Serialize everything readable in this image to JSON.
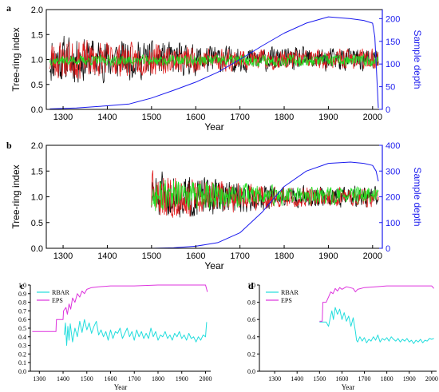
{
  "figure": {
    "colors": {
      "black": "#111111",
      "red": "#e02020",
      "green": "#22dd22",
      "blue": "#1a1aee",
      "cyan": "#22dddd",
      "magenta": "#dd33dd"
    }
  },
  "chart_data": [
    {
      "panel": "a",
      "type": "line",
      "xlabel": "Year",
      "ylabel_left": "Tree-ring index",
      "ylabel_right": "Sample depth",
      "xlim": [
        1262,
        2022
      ],
      "ylim_left": [
        0,
        2.0
      ],
      "ylim_right": [
        0,
        220
      ],
      "xticks": [
        1300,
        1400,
        1500,
        1600,
        1700,
        1800,
        1900,
        2000
      ],
      "yticks_left": [
        0.0,
        0.5,
        1.0,
        1.5,
        2.0
      ],
      "yticks_right": [
        0,
        50,
        100,
        150,
        200
      ],
      "grid": false,
      "series": [
        {
          "kind": "ring-index",
          "color": "black",
          "start": 1270,
          "end": 2013,
          "mean": 1.0,
          "amp_early": 0.42,
          "amp_late": 0.2,
          "seed": 11
        },
        {
          "kind": "ring-index",
          "color": "red",
          "start": 1270,
          "end": 2013,
          "mean": 1.0,
          "amp_early": 0.35,
          "amp_late": 0.17,
          "seed": 23
        },
        {
          "kind": "ring-index",
          "color": "green",
          "start": 1270,
          "end": 2013,
          "mean": 0.98,
          "amp_early": 0.08,
          "amp_late": 0.1,
          "seed": 37
        },
        {
          "kind": "sample-depth",
          "color": "blue",
          "axis": "right",
          "points": [
            [
              1270,
              1
            ],
            [
              1330,
              3
            ],
            [
              1400,
              8
            ],
            [
              1450,
              12
            ],
            [
              1500,
              25
            ],
            [
              1550,
              42
            ],
            [
              1600,
              60
            ],
            [
              1650,
              82
            ],
            [
              1700,
              110
            ],
            [
              1750,
              140
            ],
            [
              1800,
              168
            ],
            [
              1850,
              190
            ],
            [
              1900,
              204
            ],
            [
              1950,
              200
            ],
            [
              1980,
              196
            ],
            [
              2000,
              190
            ],
            [
              2005,
              160
            ],
            [
              2010,
              60
            ],
            [
              2013,
              3
            ]
          ]
        }
      ]
    },
    {
      "panel": "b",
      "type": "line",
      "xlabel": "Year",
      "ylabel_left": "Tree-ring index",
      "ylabel_right": "Sample depth",
      "xlim": [
        1262,
        2022
      ],
      "ylim_left": [
        0,
        2.0
      ],
      "ylim_right": [
        0,
        400
      ],
      "xticks": [
        1300,
        1400,
        1500,
        1600,
        1700,
        1800,
        1900,
        2000
      ],
      "yticks_left": [
        0.0,
        0.5,
        1.0,
        1.5,
        2.0
      ],
      "yticks_right": [
        0,
        100,
        200,
        300,
        400
      ],
      "grid": false,
      "series": [
        {
          "kind": "ring-index",
          "color": "black",
          "start": 1500,
          "end": 2013,
          "mean": 1.0,
          "amp_early": 0.4,
          "amp_late": 0.17,
          "seed": 51
        },
        {
          "kind": "ring-index",
          "color": "red",
          "start": 1500,
          "end": 2013,
          "mean": 1.0,
          "amp_early": 0.38,
          "amp_late": 0.16,
          "seed": 63
        },
        {
          "kind": "ring-index",
          "color": "green",
          "start": 1500,
          "end": 2013,
          "mean": 1.02,
          "amp_early": 0.3,
          "amp_late": 0.14,
          "seed": 77
        },
        {
          "kind": "sample-depth",
          "color": "blue",
          "axis": "right",
          "points": [
            [
              1500,
              0
            ],
            [
              1550,
              2
            ],
            [
              1600,
              8
            ],
            [
              1650,
              22
            ],
            [
              1700,
              60
            ],
            [
              1750,
              140
            ],
            [
              1800,
              240
            ],
            [
              1850,
              300
            ],
            [
              1900,
              330
            ],
            [
              1950,
              335
            ],
            [
              1980,
              330
            ],
            [
              2000,
              322
            ],
            [
              2008,
              300
            ],
            [
              2013,
              260
            ]
          ]
        }
      ]
    },
    {
      "panel": "c",
      "type": "line",
      "xlabel": "Year",
      "xlim": [
        1262,
        2022
      ],
      "ylim": [
        0,
        1.0
      ],
      "xticks": [
        1300,
        1400,
        1500,
        1600,
        1700,
        1800,
        1900,
        2000
      ],
      "yticks": [
        0.0,
        0.1,
        0.2,
        0.3,
        0.4,
        0.5,
        0.6,
        0.7,
        0.8,
        0.9,
        1.0
      ],
      "grid": false,
      "legend": "top-left",
      "series": [
        {
          "name": "RBAR",
          "color": "cyan",
          "points": [
            [
              1405,
              0.42
            ],
            [
              1410,
              0.56
            ],
            [
              1415,
              0.3
            ],
            [
              1420,
              0.52
            ],
            [
              1425,
              0.36
            ],
            [
              1430,
              0.55
            ],
            [
              1440,
              0.34
            ],
            [
              1450,
              0.5
            ],
            [
              1460,
              0.4
            ],
            [
              1470,
              0.58
            ],
            [
              1480,
              0.45
            ],
            [
              1490,
              0.6
            ],
            [
              1500,
              0.48
            ],
            [
              1510,
              0.56
            ],
            [
              1520,
              0.44
            ],
            [
              1530,
              0.52
            ],
            [
              1540,
              0.58
            ],
            [
              1550,
              0.42
            ],
            [
              1560,
              0.48
            ],
            [
              1570,
              0.4
            ],
            [
              1580,
              0.46
            ],
            [
              1590,
              0.36
            ],
            [
              1600,
              0.48
            ],
            [
              1610,
              0.38
            ],
            [
              1620,
              0.46
            ],
            [
              1630,
              0.44
            ],
            [
              1640,
              0.5
            ],
            [
              1650,
              0.38
            ],
            [
              1660,
              0.44
            ],
            [
              1670,
              0.5
            ],
            [
              1680,
              0.4
            ],
            [
              1690,
              0.46
            ],
            [
              1700,
              0.36
            ],
            [
              1710,
              0.48
            ],
            [
              1720,
              0.4
            ],
            [
              1730,
              0.46
            ],
            [
              1740,
              0.38
            ],
            [
              1750,
              0.44
            ],
            [
              1760,
              0.38
            ],
            [
              1770,
              0.5
            ],
            [
              1780,
              0.4
            ],
            [
              1790,
              0.46
            ],
            [
              1800,
              0.36
            ],
            [
              1810,
              0.42
            ],
            [
              1820,
              0.4
            ],
            [
              1830,
              0.46
            ],
            [
              1840,
              0.38
            ],
            [
              1850,
              0.42
            ],
            [
              1860,
              0.36
            ],
            [
              1870,
              0.44
            ],
            [
              1880,
              0.4
            ],
            [
              1890,
              0.46
            ],
            [
              1900,
              0.38
            ],
            [
              1910,
              0.42
            ],
            [
              1920,
              0.36
            ],
            [
              1930,
              0.44
            ],
            [
              1940,
              0.38
            ],
            [
              1950,
              0.4
            ],
            [
              1960,
              0.34
            ],
            [
              1970,
              0.4
            ],
            [
              1980,
              0.36
            ],
            [
              1990,
              0.42
            ],
            [
              2000,
              0.4
            ],
            [
              2005,
              0.57
            ]
          ]
        },
        {
          "name": "EPS",
          "color": "magenta",
          "points": [
            [
              1270,
              0.46
            ],
            [
              1370,
              0.46
            ],
            [
              1372,
              0.6
            ],
            [
              1400,
              0.6
            ],
            [
              1402,
              0.7
            ],
            [
              1412,
              0.74
            ],
            [
              1418,
              0.66
            ],
            [
              1425,
              0.78
            ],
            [
              1432,
              0.72
            ],
            [
              1440,
              0.85
            ],
            [
              1450,
              0.8
            ],
            [
              1460,
              0.9
            ],
            [
              1470,
              0.86
            ],
            [
              1480,
              0.93
            ],
            [
              1490,
              0.9
            ],
            [
              1500,
              0.95
            ],
            [
              1520,
              0.97
            ],
            [
              1550,
              0.98
            ],
            [
              1600,
              0.99
            ],
            [
              1700,
              0.99
            ],
            [
              1800,
              1.0
            ],
            [
              1900,
              1.0
            ],
            [
              2000,
              1.0
            ],
            [
              2008,
              0.92
            ]
          ]
        }
      ]
    },
    {
      "panel": "d",
      "type": "line",
      "xlabel": "Year",
      "xlim": [
        1232,
        2022
      ],
      "ylim": [
        0,
        1.0
      ],
      "xticks": [
        1300,
        1400,
        1500,
        1600,
        1700,
        1800,
        1900,
        2000
      ],
      "yticks": [
        0.0,
        0.2,
        0.4,
        0.6,
        0.8,
        1.0
      ],
      "grid": false,
      "legend": "top-left",
      "series": [
        {
          "name": "RBAR",
          "color": "cyan",
          "points": [
            [
              1500,
              0.57
            ],
            [
              1530,
              0.57
            ],
            [
              1540,
              0.52
            ],
            [
              1548,
              0.62
            ],
            [
              1555,
              0.7
            ],
            [
              1562,
              0.6
            ],
            [
              1570,
              0.74
            ],
            [
              1580,
              0.66
            ],
            [
              1590,
              0.72
            ],
            [
              1600,
              0.6
            ],
            [
              1610,
              0.68
            ],
            [
              1620,
              0.58
            ],
            [
              1630,
              0.64
            ],
            [
              1640,
              0.52
            ],
            [
              1650,
              0.62
            ],
            [
              1660,
              0.46
            ],
            [
              1665,
              0.36
            ],
            [
              1670,
              0.34
            ],
            [
              1680,
              0.4
            ],
            [
              1690,
              0.35
            ],
            [
              1700,
              0.39
            ],
            [
              1710,
              0.33
            ],
            [
              1720,
              0.37
            ],
            [
              1730,
              0.35
            ],
            [
              1740,
              0.4
            ],
            [
              1750,
              0.36
            ],
            [
              1760,
              0.42
            ],
            [
              1770,
              0.34
            ],
            [
              1780,
              0.38
            ],
            [
              1790,
              0.36
            ],
            [
              1800,
              0.39
            ],
            [
              1810,
              0.35
            ],
            [
              1820,
              0.4
            ],
            [
              1830,
              0.37
            ],
            [
              1840,
              0.35
            ],
            [
              1850,
              0.38
            ],
            [
              1860,
              0.34
            ],
            [
              1870,
              0.37
            ],
            [
              1880,
              0.35
            ],
            [
              1890,
              0.38
            ],
            [
              1900,
              0.34
            ],
            [
              1910,
              0.36
            ],
            [
              1920,
              0.32
            ],
            [
              1930,
              0.36
            ],
            [
              1940,
              0.34
            ],
            [
              1950,
              0.37
            ],
            [
              1960,
              0.33
            ],
            [
              1970,
              0.36
            ],
            [
              1980,
              0.35
            ],
            [
              1990,
              0.38
            ],
            [
              2000,
              0.37
            ],
            [
              2010,
              0.38
            ]
          ]
        },
        {
          "name": "EPS",
          "color": "magenta",
          "points": [
            [
              1500,
              0.58
            ],
            [
              1512,
              0.58
            ],
            [
              1515,
              0.8
            ],
            [
              1530,
              0.8
            ],
            [
              1540,
              0.86
            ],
            [
              1550,
              0.92
            ],
            [
              1560,
              0.9
            ],
            [
              1570,
              0.96
            ],
            [
              1580,
              0.93
            ],
            [
              1590,
              0.97
            ],
            [
              1600,
              0.95
            ],
            [
              1620,
              0.98
            ],
            [
              1650,
              0.96
            ],
            [
              1660,
              0.92
            ],
            [
              1670,
              0.95
            ],
            [
              1700,
              0.97
            ],
            [
              1750,
              0.98
            ],
            [
              1800,
              0.99
            ],
            [
              1900,
              0.99
            ],
            [
              2000,
              0.99
            ],
            [
              2010,
              0.96
            ]
          ]
        }
      ]
    }
  ]
}
